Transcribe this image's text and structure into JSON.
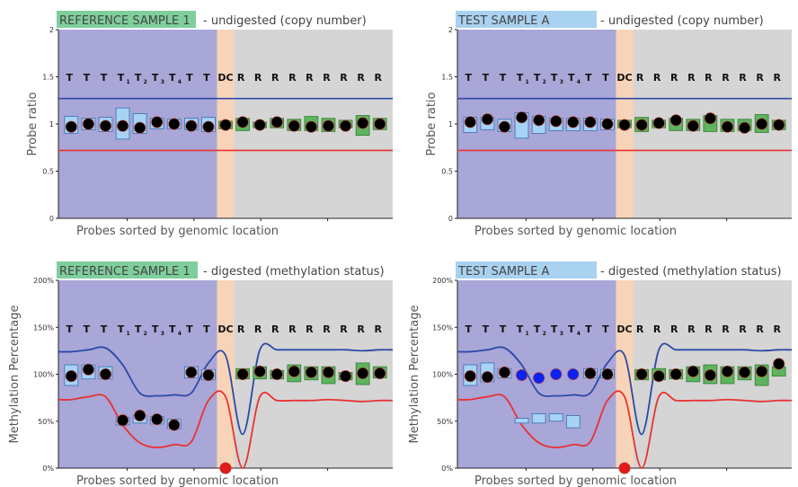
{
  "colors": {
    "reference_tag": "#7fcf9c",
    "test_tag": "#a9d2f0",
    "target_region": "#a9a6d8",
    "dc_region": "#f7d4b8",
    "ref_region": "#d5d5d5",
    "upper_line": "#2b4aa7",
    "lower_line": "#e83232",
    "box_blue": "#a7d3f5",
    "box_green": "#5fb35f",
    "dot_black": "#000000",
    "dot_blue": "#0b22f2",
    "dot_red": "#e11b1b"
  },
  "chart_data": [
    {
      "type": "scatter",
      "tag": "REFERENCE SAMPLE 1",
      "tag_color": "reference_tag",
      "subtitle": "- undigested (copy number)",
      "xlabel": "Probes sorted by genomic location",
      "ylabel": "Probe ratio",
      "ylim": [
        0,
        2
      ],
      "yticks": [
        0,
        0.5,
        1,
        1.5,
        2
      ],
      "ytick_labels": [
        "0",
        "0.5",
        "1",
        "1.5",
        "2"
      ],
      "probe_labels": [
        "T",
        "T",
        "T",
        "T1",
        "T2",
        "T3",
        "T4",
        "T",
        "T",
        "DC",
        "R",
        "R",
        "R",
        "R",
        "R",
        "R",
        "R",
        "R",
        "R"
      ],
      "regions": {
        "target_end": 9,
        "dc": 1
      },
      "upper_threshold": [
        1.27
      ],
      "lower_threshold": [
        0.72
      ],
      "boxes": [
        {
          "lo": 0.9,
          "hi": 1.08
        },
        {
          "lo": 0.94,
          "hi": 1.06
        },
        {
          "lo": 0.92,
          "hi": 1.07
        },
        {
          "lo": 0.84,
          "hi": 1.17
        },
        {
          "lo": 0.9,
          "hi": 1.11
        },
        {
          "lo": 0.95,
          "hi": 1.06
        },
        {
          "lo": 0.95,
          "hi": 1.05
        },
        {
          "lo": 0.94,
          "hi": 1.06
        },
        {
          "lo": 0.92,
          "hi": 1.07
        },
        {
          "lo": 0.95,
          "hi": 1.03
        },
        {
          "lo": 0.93,
          "hi": 1.06
        },
        {
          "lo": 0.96,
          "hi": 1.02
        },
        {
          "lo": 0.96,
          "hi": 1.06
        },
        {
          "lo": 0.93,
          "hi": 1.05
        },
        {
          "lo": 0.93,
          "hi": 1.08
        },
        {
          "lo": 0.92,
          "hi": 1.06
        },
        {
          "lo": 0.96,
          "hi": 1.04
        },
        {
          "lo": 0.88,
          "hi": 1.09
        },
        {
          "lo": 0.94,
          "hi": 1.06
        }
      ],
      "points": [
        0.97,
        1.0,
        0.98,
        0.98,
        0.96,
        1.02,
        1.0,
        0.98,
        0.97,
        0.99,
        1.02,
        0.99,
        1.02,
        0.98,
        0.97,
        0.98,
        0.98,
        1.01,
        1.0
      ],
      "dot_colors": []
    },
    {
      "type": "scatter",
      "tag": "TEST SAMPLE A",
      "tag_color": "test_tag",
      "subtitle": "- undigested (copy number)",
      "xlabel": "Probes sorted by genomic location",
      "ylabel": "Probe ratio",
      "ylim": [
        0,
        2
      ],
      "yticks": [
        0,
        0.5,
        1,
        1.5,
        2
      ],
      "ytick_labels": [
        "0",
        "0.5",
        "1",
        "1.5",
        "2"
      ],
      "probe_labels": [
        "T",
        "T",
        "T",
        "T1",
        "T2",
        "T3",
        "T4",
        "T",
        "T",
        "DC",
        "R",
        "R",
        "R",
        "R",
        "R",
        "R",
        "R",
        "R",
        "R"
      ],
      "regions": {
        "target_end": 9,
        "dc": 1
      },
      "upper_threshold": [
        1.27
      ],
      "lower_threshold": [
        0.72
      ],
      "boxes": [
        {
          "lo": 0.91,
          "hi": 1.07
        },
        {
          "lo": 0.94,
          "hi": 1.07
        },
        {
          "lo": 0.92,
          "hi": 1.05
        },
        {
          "lo": 0.85,
          "hi": 1.12
        },
        {
          "lo": 0.9,
          "hi": 1.08
        },
        {
          "lo": 0.93,
          "hi": 1.06
        },
        {
          "lo": 0.93,
          "hi": 1.06
        },
        {
          "lo": 0.93,
          "hi": 1.06
        },
        {
          "lo": 0.94,
          "hi": 1.05
        },
        {
          "lo": 0.96,
          "hi": 1.04
        },
        {
          "lo": 0.92,
          "hi": 1.07
        },
        {
          "lo": 0.96,
          "hi": 1.04
        },
        {
          "lo": 0.93,
          "hi": 1.06
        },
        {
          "lo": 0.93,
          "hi": 1.05
        },
        {
          "lo": 0.92,
          "hi": 1.09
        },
        {
          "lo": 0.92,
          "hi": 1.05
        },
        {
          "lo": 0.93,
          "hi": 1.05
        },
        {
          "lo": 0.91,
          "hi": 1.1
        },
        {
          "lo": 0.94,
          "hi": 1.04
        }
      ],
      "points": [
        1.02,
        1.05,
        0.97,
        1.07,
        1.04,
        1.03,
        1.02,
        1.02,
        1.0,
        0.99,
        0.99,
        1.01,
        1.04,
        0.98,
        1.06,
        0.97,
        0.96,
        1.0,
        0.99
      ],
      "dot_colors": []
    },
    {
      "type": "scatter",
      "tag": "REFERENCE SAMPLE 1",
      "tag_color": "reference_tag",
      "subtitle": "- digested (methylation status)",
      "xlabel": "Probes sorted by genomic location",
      "ylabel": "Methylation Percentage",
      "ylim": [
        0,
        200
      ],
      "yticks": [
        0,
        50,
        100,
        150,
        200
      ],
      "ytick_labels": [
        "0%",
        "50%",
        "100%",
        "150%",
        "200%"
      ],
      "probe_labels": [
        "T",
        "T",
        "T",
        "T1",
        "T2",
        "T3",
        "T4",
        "T",
        "T",
        "DC",
        "R",
        "R",
        "R",
        "R",
        "R",
        "R",
        "R",
        "R",
        "R"
      ],
      "regions": {
        "target_end": 9,
        "dc": 1
      },
      "upper_threshold": [
        124,
        126,
        128,
        110,
        80,
        77,
        78,
        80,
        112,
        120,
        36,
        126,
        126,
        126,
        126,
        126,
        126,
        125,
        126
      ],
      "lower_threshold": [
        73,
        76,
        76,
        46,
        27,
        22,
        25,
        28,
        72,
        76,
        0,
        76,
        72,
        72,
        72,
        73,
        72,
        71,
        72
      ],
      "boxes": [
        {
          "lo": 88,
          "hi": 110
        },
        {
          "lo": 95,
          "hi": 110
        },
        {
          "lo": 95,
          "hi": 108
        },
        {
          "lo": 46,
          "hi": 54
        },
        {
          "lo": 48,
          "hi": 56
        },
        {
          "lo": 47,
          "hi": 55
        },
        {
          "lo": 42,
          "hi": 52
        },
        {
          "lo": 96,
          "hi": 108
        },
        {
          "lo": 94,
          "hi": 105
        },
        {
          "lo": 0,
          "hi": 0
        },
        {
          "lo": 95,
          "hi": 106
        },
        {
          "lo": 95,
          "hi": 108
        },
        {
          "lo": 95,
          "hi": 104
        },
        {
          "lo": 92,
          "hi": 110
        },
        {
          "lo": 94,
          "hi": 108
        },
        {
          "lo": 90,
          "hi": 108
        },
        {
          "lo": 94,
          "hi": 102
        },
        {
          "lo": 89,
          "hi": 112
        },
        {
          "lo": 96,
          "hi": 108
        }
      ],
      "points": [
        98,
        105,
        100,
        51,
        56,
        52,
        46,
        102,
        99,
        0,
        100,
        103,
        100,
        103,
        102,
        102,
        98,
        101,
        101
      ],
      "dot_colors": [
        "dot_black",
        "dot_black",
        "dot_black",
        "dot_black",
        "dot_black",
        "dot_black",
        "dot_black",
        "dot_black",
        "dot_black",
        "dot_red",
        "dot_black",
        "dot_black",
        "dot_black",
        "dot_black",
        "dot_black",
        "dot_black",
        "dot_black",
        "dot_black",
        "dot_black"
      ]
    },
    {
      "type": "scatter",
      "tag": "TEST SAMPLE A",
      "tag_color": "test_tag",
      "subtitle": "- digested (methylation status)",
      "xlabel": "Probes sorted by genomic location",
      "ylabel": "Methylation Percentage",
      "ylim": [
        0,
        200
      ],
      "yticks": [
        0,
        50,
        100,
        150,
        200
      ],
      "ytick_labels": [
        "0%",
        "50%",
        "100%",
        "150%",
        "200%"
      ],
      "probe_labels": [
        "T",
        "T",
        "T",
        "T1",
        "T2",
        "T3",
        "T4",
        "T",
        "T",
        "DC",
        "R",
        "R",
        "R",
        "R",
        "R",
        "R",
        "R",
        "R",
        "R"
      ],
      "regions": {
        "target_end": 9,
        "dc": 1
      },
      "upper_threshold": [
        124,
        126,
        128,
        110,
        80,
        77,
        78,
        80,
        112,
        120,
        36,
        126,
        126,
        126,
        126,
        126,
        126,
        125,
        126
      ],
      "lower_threshold": [
        73,
        76,
        76,
        46,
        27,
        22,
        25,
        28,
        72,
        76,
        0,
        76,
        72,
        72,
        72,
        73,
        72,
        71,
        72
      ],
      "boxes": [
        {
          "lo": 88,
          "hi": 110
        },
        {
          "lo": 92,
          "hi": 112
        },
        {
          "lo": 96,
          "hi": 106
        },
        {
          "lo": 48,
          "hi": 53
        },
        {
          "lo": 48,
          "hi": 58
        },
        {
          "lo": 50,
          "hi": 58
        },
        {
          "lo": 43,
          "hi": 56
        },
        {
          "lo": 96,
          "hi": 106
        },
        {
          "lo": 96,
          "hi": 105
        },
        {
          "lo": 0,
          "hi": 0
        },
        {
          "lo": 94,
          "hi": 105
        },
        {
          "lo": 94,
          "hi": 106
        },
        {
          "lo": 95,
          "hi": 105
        },
        {
          "lo": 92,
          "hi": 108
        },
        {
          "lo": 90,
          "hi": 110
        },
        {
          "lo": 90,
          "hi": 108
        },
        {
          "lo": 94,
          "hi": 108
        },
        {
          "lo": 88,
          "hi": 110
        },
        {
          "lo": 98,
          "hi": 108
        }
      ],
      "points": [
        98,
        97,
        102,
        99,
        96,
        100,
        100,
        101,
        100,
        0,
        100,
        98,
        100,
        103,
        99,
        103,
        102,
        103,
        111
      ],
      "dot_colors": [
        "dot_black",
        "dot_black",
        "dot_black",
        "dot_blue",
        "dot_blue",
        "dot_blue",
        "dot_blue",
        "dot_black",
        "dot_black",
        "dot_red",
        "dot_black",
        "dot_black",
        "dot_black",
        "dot_black",
        "dot_black",
        "dot_black",
        "dot_black",
        "dot_black",
        "dot_black"
      ]
    }
  ]
}
